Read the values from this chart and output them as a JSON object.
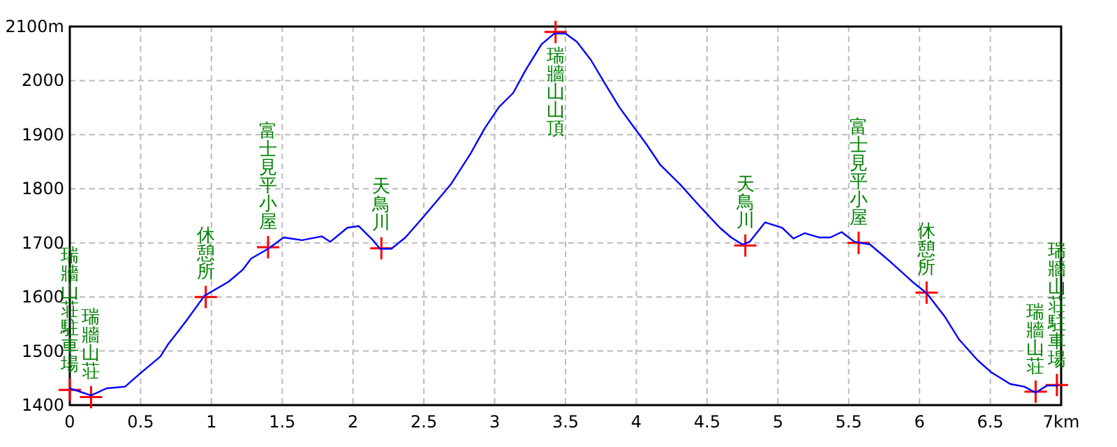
{
  "chart_data": {
    "type": "line",
    "xlim": [
      0,
      7
    ],
    "ylim": [
      1400,
      2100
    ],
    "xticks": [
      0,
      0.5,
      1,
      1.5,
      2,
      2.5,
      3,
      3.5,
      4,
      4.5,
      5,
      5.5,
      6,
      6.5,
      {
        "value": 7,
        "label": "7km"
      }
    ],
    "yticks": [
      1400,
      1500,
      1600,
      1700,
      1800,
      1900,
      2000,
      {
        "value": 2100,
        "label": "2100m"
      }
    ],
    "grid": true,
    "series": [
      {
        "type": "line",
        "color": "#0000ff",
        "marker": "none",
        "x": [
          0,
          0.15,
          0.26,
          0.39,
          0.49,
          0.64,
          0.69,
          0.82,
          0.95,
          1.12,
          1.22,
          1.28,
          1.4,
          1.51,
          1.64,
          1.78,
          1.84,
          1.96,
          2.04,
          2.14,
          2.19,
          2.27,
          2.37,
          2.5,
          2.6,
          2.69,
          2.83,
          2.93,
          3.03,
          3.13,
          3.22,
          3.33,
          3.42,
          3.5,
          3.58,
          3.68,
          3.78,
          3.88,
          3.96,
          4.07,
          4.17,
          4.31,
          4.44,
          4.59,
          4.67,
          4.75,
          4.8,
          4.91,
          5.03,
          5.11,
          5.19,
          5.29,
          5.37,
          5.45,
          5.54,
          5.65,
          5.79,
          5.95,
          6.05,
          6.18,
          6.28,
          6.41,
          6.51,
          6.64,
          6.74,
          6.82,
          6.9,
          6.98
        ],
        "values": [
          1431,
          1418,
          1431,
          1434,
          1457,
          1490,
          1511,
          1555,
          1602,
          1628,
          1650,
          1671,
          1689,
          1710,
          1705,
          1712,
          1702,
          1728,
          1731,
          1705,
          1689,
          1689,
          1710,
          1749,
          1780,
          1808,
          1865,
          1912,
          1951,
          1977,
          2020,
          2067,
          2087,
          2087,
          2072,
          2038,
          1994,
          1951,
          1922,
          1883,
          1844,
          1808,
          1770,
          1728,
          1710,
          1697,
          1702,
          1738,
          1728,
          1708,
          1718,
          1710,
          1710,
          1720,
          1702,
          1697,
          1666,
          1628,
          1607,
          1563,
          1521,
          1483,
          1460,
          1439,
          1434,
          1423,
          1436,
          1436
        ]
      },
      {
        "type": "scatter",
        "color": "#ff0000",
        "marker": "cross",
        "x": [
          0,
          0.15,
          0.96,
          1.4,
          2.2,
          3.43,
          4.77,
          5.57,
          6.05,
          6.82,
          6.97
        ],
        "values": [
          1428,
          1415,
          1600,
          1692,
          1690,
          2090,
          1695,
          1700,
          1608,
          1425,
          1437
        ]
      }
    ],
    "annotations": [
      {
        "text": "瑞牆山荘駐車場",
        "x": 0,
        "y": 1428
      },
      {
        "text": "瑞牆山荘",
        "x": 0.15,
        "y": 1415
      },
      {
        "text": "休憩所",
        "x": 0.96,
        "y": 1600
      },
      {
        "text": "富士見平小屋",
        "x": 1.4,
        "y": 1692
      },
      {
        "text": "天鳥川",
        "x": 2.2,
        "y": 1690
      },
      {
        "text": "瑞牆山山頂",
        "x": 3.43,
        "y": 2090
      },
      {
        "text": "天鳥川",
        "x": 4.77,
        "y": 1695
      },
      {
        "text": "富士見平小屋",
        "x": 5.57,
        "y": 1700
      },
      {
        "text": "休憩所",
        "x": 6.05,
        "y": 1608
      },
      {
        "text": "瑞牆山荘",
        "x": 6.82,
        "y": 1425
      },
      {
        "text": "瑞牆山荘駐車場",
        "x": 6.97,
        "y": 1437
      }
    ]
  }
}
